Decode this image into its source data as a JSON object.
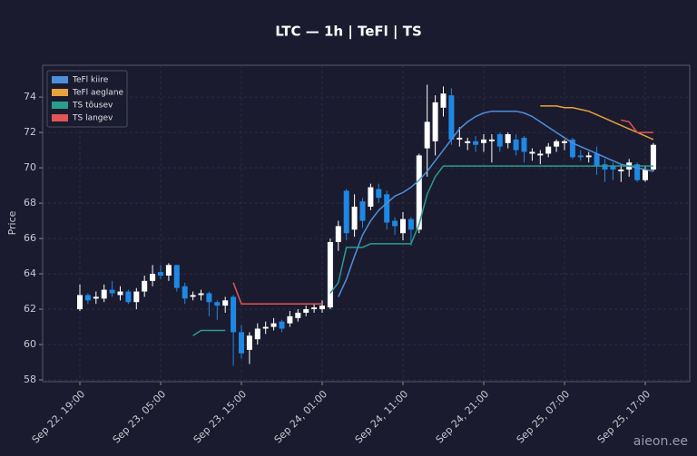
{
  "chart_data": {
    "type": "candlestick",
    "title": "LTC — 1h  |  TeFl  |  TS",
    "y_label": "Price",
    "watermark": "aieon.ee",
    "categories": [
      "Sep 22, 19:00",
      null,
      null,
      null,
      null,
      null,
      null,
      null,
      null,
      null,
      "Sep 23, 05:00",
      null,
      null,
      null,
      null,
      null,
      null,
      null,
      null,
      null,
      "Sep 23, 15:00",
      null,
      null,
      null,
      null,
      null,
      null,
      null,
      null,
      null,
      "Sep 24, 01:00",
      null,
      null,
      null,
      null,
      null,
      null,
      null,
      null,
      null,
      "Sep 24, 11:00",
      null,
      null,
      null,
      null,
      null,
      null,
      null,
      null,
      null,
      "Sep 24, 21:00",
      null,
      null,
      null,
      null,
      null,
      null,
      null,
      null,
      null,
      "Sep 25, 07:00",
      null,
      null,
      null,
      null,
      null,
      null,
      null,
      null,
      null,
      "Sep 25, 17:00",
      null
    ],
    "up_color": "#ffffff",
    "down_color": "#1e88e5",
    "ohlc": {
      "open": [
        62.0,
        62.8,
        62.6,
        62.6,
        63.1,
        62.8,
        63.0,
        62.4,
        63.0,
        63.6,
        64.1,
        63.9,
        64.5,
        63.3,
        62.7,
        62.8,
        62.9,
        62.4,
        62.2,
        62.7,
        60.7,
        59.7,
        60.3,
        60.9,
        61.0,
        61.3,
        61.2,
        61.5,
        61.8,
        62.0,
        62.0,
        62.1,
        65.8,
        68.7,
        66.5,
        68.1,
        67.8,
        68.8,
        68.5,
        67.0,
        66.3,
        67.1,
        66.5,
        71.1,
        71.5,
        73.4,
        74.1,
        71.6,
        71.4,
        71.5,
        71.4,
        71.5,
        71.9,
        71.4,
        71.6,
        71.7,
        70.8,
        70.7,
        70.8,
        71.2,
        71.4,
        71.6,
        70.7,
        70.6,
        70.8,
        70.2,
        70.1,
        69.8,
        69.9,
        70.2,
        69.3,
        69.9
      ],
      "high": [
        63.4,
        62.9,
        63.0,
        63.4,
        63.6,
        63.3,
        63.1,
        63.2,
        63.9,
        64.5,
        64.5,
        64.6,
        64.5,
        63.5,
        63.0,
        63.1,
        63.0,
        62.5,
        62.7,
        62.8,
        61.1,
        60.7,
        61.2,
        61.3,
        61.5,
        61.4,
        61.9,
        62.0,
        62.2,
        62.3,
        62.5,
        66.0,
        67.0,
        68.8,
        68.5,
        68.3,
        69.1,
        69.1,
        68.7,
        67.2,
        67.5,
        67.2,
        70.8,
        74.7,
        74.1,
        74.6,
        74.5,
        72.3,
        71.7,
        71.8,
        71.9,
        71.9,
        72.0,
        72.0,
        71.9,
        71.8,
        71.1,
        71.0,
        71.4,
        71.6,
        71.6,
        71.7,
        71.0,
        70.9,
        71.2,
        70.5,
        70.3,
        70.2,
        70.5,
        70.3,
        70.1,
        71.4
      ],
      "low": [
        61.9,
        62.3,
        62.3,
        62.4,
        62.7,
        62.5,
        62.3,
        62.0,
        62.7,
        63.3,
        63.7,
        63.6,
        63.0,
        62.3,
        62.5,
        62.5,
        61.6,
        61.4,
        61.8,
        58.8,
        59.2,
        58.9,
        60.0,
        60.6,
        60.8,
        60.7,
        61.0,
        61.3,
        61.6,
        61.8,
        61.8,
        62.0,
        65.3,
        65.9,
        66.1,
        66.6,
        67.6,
        68.0,
        66.5,
        66.2,
        65.9,
        65.6,
        66.3,
        69.5,
        70.7,
        72.9,
        71.3,
        71.2,
        71.0,
        70.9,
        70.9,
        70.3,
        70.9,
        71.1,
        70.7,
        70.3,
        70.4,
        70.2,
        70.6,
        70.9,
        71.0,
        70.5,
        70.4,
        70.3,
        69.6,
        69.2,
        69.3,
        69.2,
        69.5,
        69.2,
        69.2,
        69.8
      ],
      "close": [
        62.8,
        62.5,
        62.7,
        63.1,
        62.9,
        63.0,
        62.4,
        63.0,
        63.6,
        64.0,
        63.9,
        64.5,
        63.2,
        62.6,
        62.8,
        62.9,
        62.4,
        62.2,
        62.5,
        60.7,
        59.5,
        60.5,
        60.9,
        61.0,
        61.2,
        60.9,
        61.6,
        61.8,
        62.0,
        62.1,
        62.2,
        65.8,
        66.7,
        66.3,
        67.8,
        67.0,
        68.9,
        68.3,
        66.9,
        66.7,
        67.1,
        66.5,
        70.7,
        72.6,
        73.7,
        74.2,
        71.6,
        71.7,
        71.5,
        71.3,
        71.6,
        71.6,
        71.2,
        71.9,
        71.0,
        70.9,
        70.9,
        70.8,
        71.2,
        71.5,
        71.5,
        70.6,
        70.6,
        70.7,
        70.1,
        69.9,
        69.9,
        69.9,
        70.3,
        69.3,
        69.9,
        71.3
      ]
    },
    "series": [
      {
        "name": "TeFl kiire",
        "color": "#4d8fdb",
        "values": [
          null,
          null,
          null,
          null,
          null,
          null,
          null,
          null,
          null,
          null,
          null,
          null,
          null,
          null,
          null,
          null,
          null,
          null,
          null,
          null,
          null,
          null,
          null,
          null,
          null,
          null,
          null,
          null,
          null,
          null,
          null,
          null,
          62.7,
          63.7,
          65.0,
          66.2,
          67.0,
          67.6,
          68.0,
          68.4,
          68.6,
          68.9,
          69.3,
          69.8,
          70.4,
          71.0,
          71.6,
          72.2,
          72.6,
          72.9,
          73.1,
          73.2,
          73.2,
          73.2,
          73.2,
          73.1,
          72.9,
          72.6,
          72.3,
          72.0,
          71.7,
          71.4,
          71.2,
          71.0,
          70.8,
          70.6,
          70.4,
          70.2,
          70.1,
          70.0,
          69.9,
          69.8
        ]
      },
      {
        "name": "TeFl aeglane",
        "color": "#e6a23c",
        "values": [
          null,
          null,
          null,
          null,
          null,
          null,
          null,
          null,
          null,
          null,
          null,
          null,
          null,
          null,
          null,
          null,
          null,
          null,
          null,
          null,
          null,
          null,
          null,
          null,
          null,
          null,
          null,
          null,
          null,
          null,
          null,
          null,
          null,
          null,
          null,
          null,
          null,
          null,
          null,
          null,
          null,
          null,
          null,
          null,
          null,
          null,
          null,
          null,
          null,
          null,
          null,
          null,
          null,
          null,
          null,
          null,
          null,
          73.5,
          73.5,
          73.5,
          73.4,
          73.4,
          73.3,
          73.2,
          73.0,
          72.8,
          72.6,
          72.4,
          72.2,
          72.0,
          71.8,
          71.6
        ]
      },
      {
        "name": "TS tõusev",
        "color": "#2a9d8f",
        "values": [
          null,
          null,
          null,
          null,
          null,
          null,
          null,
          null,
          null,
          null,
          null,
          null,
          null,
          null,
          60.5,
          60.8,
          60.8,
          60.8,
          60.8,
          null,
          null,
          null,
          null,
          null,
          null,
          null,
          null,
          null,
          null,
          null,
          null,
          62.9,
          63.5,
          65.5,
          65.5,
          65.5,
          65.7,
          65.7,
          65.7,
          65.7,
          65.7,
          65.7,
          66.8,
          68.5,
          69.5,
          70.1,
          70.1,
          70.1,
          70.1,
          70.1,
          70.1,
          70.1,
          70.1,
          70.1,
          70.1,
          70.1,
          70.1,
          70.1,
          70.1,
          70.1,
          70.1,
          70.1,
          70.1,
          70.1,
          70.1,
          70.1,
          70.1,
          70.1,
          70.1,
          70.1,
          70.1,
          70.1
        ]
      },
      {
        "name": "TS langev",
        "color": "#e05555",
        "values": [
          null,
          null,
          null,
          null,
          null,
          null,
          null,
          null,
          null,
          null,
          null,
          null,
          null,
          null,
          null,
          null,
          null,
          null,
          null,
          63.5,
          62.3,
          62.3,
          62.3,
          62.3,
          62.3,
          62.3,
          62.3,
          62.3,
          62.3,
          62.3,
          62.3,
          null,
          null,
          null,
          null,
          null,
          null,
          null,
          null,
          null,
          null,
          null,
          null,
          null,
          null,
          null,
          null,
          null,
          null,
          null,
          null,
          null,
          null,
          null,
          null,
          null,
          null,
          null,
          null,
          null,
          null,
          null,
          null,
          null,
          null,
          null,
          null,
          72.7,
          72.6,
          72.0,
          72.0,
          72.0
        ]
      }
    ],
    "ylim": [
      57.9,
      75.8
    ],
    "yticks": [
      58,
      60,
      62,
      64,
      66,
      68,
      70,
      72,
      74
    ],
    "grid": true,
    "legend": "upper-left"
  }
}
